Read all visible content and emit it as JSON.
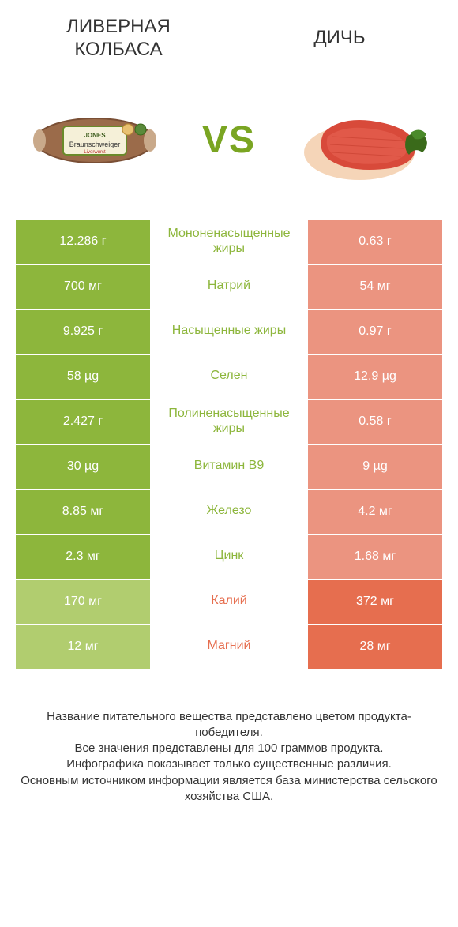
{
  "colors": {
    "green_winner": "#8db63c",
    "green_loser": "#b1cd6f",
    "orange_winner": "#e66e4f",
    "orange_loser": "#eb9480",
    "green_text": "#8db63c",
    "orange_text": "#e66e4f",
    "body_text": "#333333"
  },
  "header": {
    "left_title": "ЛИВЕРНАЯ КОЛБАСА",
    "right_title": "ДИЧЬ",
    "vs": "VS"
  },
  "rows": [
    {
      "left_value": "12.286 г",
      "label": "Мононенасыщенные жиры",
      "right_value": "0.63 г",
      "winner": "left"
    },
    {
      "left_value": "700 мг",
      "label": "Натрий",
      "right_value": "54 мг",
      "winner": "left"
    },
    {
      "left_value": "9.925 г",
      "label": "Насыщенные жиры",
      "right_value": "0.97 г",
      "winner": "left"
    },
    {
      "left_value": "58 µg",
      "label": "Селен",
      "right_value": "12.9 µg",
      "winner": "left"
    },
    {
      "left_value": "2.427 г",
      "label": "Полиненасыщенные жиры",
      "right_value": "0.58 г",
      "winner": "left"
    },
    {
      "left_value": "30 µg",
      "label": "Витамин B9",
      "right_value": "9 µg",
      "winner": "left"
    },
    {
      "left_value": "8.85 мг",
      "label": "Железо",
      "right_value": "4.2 мг",
      "winner": "left"
    },
    {
      "left_value": "2.3 мг",
      "label": "Цинк",
      "right_value": "1.68 мг",
      "winner": "left"
    },
    {
      "left_value": "170 мг",
      "label": "Калий",
      "right_value": "372 мг",
      "winner": "right"
    },
    {
      "left_value": "12 мг",
      "label": "Магний",
      "right_value": "28 мг",
      "winner": "right"
    }
  ],
  "footer": {
    "line1": "Название питательного вещества представлено цветом продукта-победителя.",
    "line2": "Все значения представлены для 100 граммов продукта.",
    "line3": "Инфографика показывает только существенные различия.",
    "line4": "Основным источником информации является база министерства сельского хозяйства США."
  }
}
